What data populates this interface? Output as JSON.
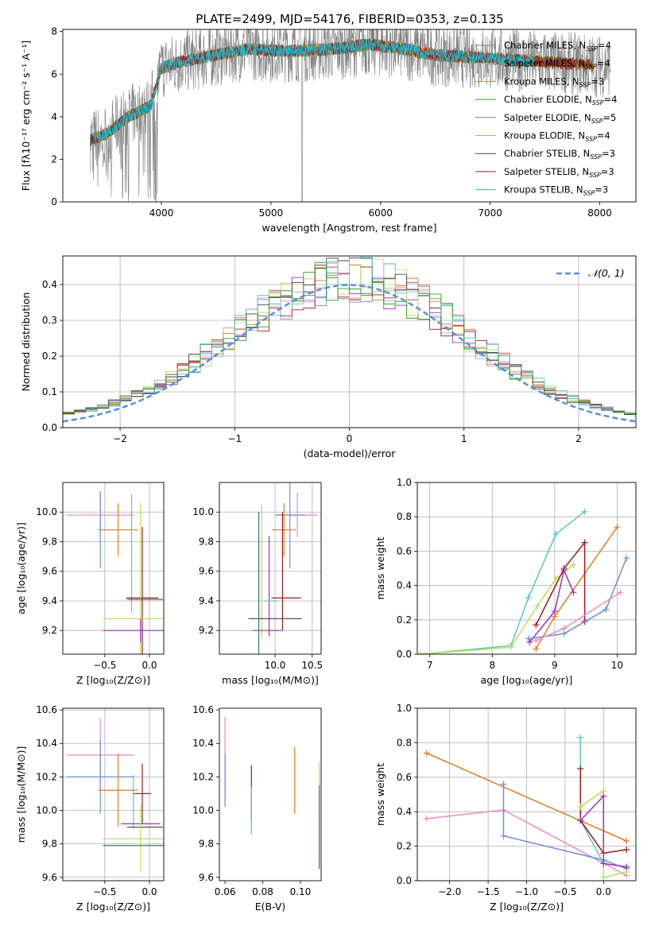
{
  "figure_title": "PLATE=2499, MJD=54176, FIBERID=0353, z=0.135",
  "colors": {
    "chabrier_miles": "#7f7f7f",
    "salpeter_miles": "#ff9896",
    "kroupa_miles": "#ff7f0e",
    "chabrier_elodie": "#2ca02c",
    "salpeter_elodie": "#9467bd",
    "kroupa_elodie": "#bcbd22",
    "chabrier_stelib": "#444444",
    "salpeter_stelib": "#b22222",
    "kroupa_stelib": "#17becf",
    "blue": "#6a8fd8",
    "orange": "#e27a26",
    "pink": "#e98bc4",
    "purple": "#9b35b8",
    "green_light": "#b7e05a",
    "red": "#a11a1a",
    "teal": "#5fc4c4",
    "gauss": "#5b8fd8"
  },
  "chart_data": [
    {
      "id": "spectrum",
      "type": "line",
      "xlabel": "wavelength [Angstrom, rest frame]",
      "ylabel": "Flux [fλ10⁻¹⁷ erg cm⁻² s⁻¹ A⁻¹]",
      "xlim": [
        3100,
        8330
      ],
      "ylim": [
        0,
        8.1
      ],
      "xticks": [
        "4000",
        "5000",
        "6000",
        "7000",
        "8000"
      ],
      "yticks": [
        "0",
        "2",
        "4",
        "6",
        "8"
      ],
      "legend_position": "right",
      "legend": [
        {
          "label": "Chabrier MILES, N",
          "sub": "SSP",
          "suffix": "=4",
          "color": "#7f7f7f"
        },
        {
          "label": "Salpeter MILES, N",
          "sub": "SSP",
          "suffix": "=4",
          "color": "#ff9896"
        },
        {
          "label": "Kroupa MILES, N",
          "sub": "SSP",
          "suffix": "=3",
          "color": "#ff7f0e"
        },
        {
          "label": "Chabrier ELODIE, N",
          "sub": "SSP",
          "suffix": "=4",
          "color": "#2ca02c"
        },
        {
          "label": "Salpeter ELODIE, N",
          "sub": "SSP",
          "suffix": "=5",
          "color": "#9467bd"
        },
        {
          "label": "Kroupa ELODIE, N",
          "sub": "SSP",
          "suffix": "=4",
          "color": "#bcbd22"
        },
        {
          "label": "Chabrier STELIB, N",
          "sub": "SSP",
          "suffix": "=3",
          "color": "#444444"
        },
        {
          "label": "Salpeter STELIB, N",
          "sub": "SSP",
          "suffix": "=3",
          "color": "#b22222"
        },
        {
          "label": "Kroupa STELIB, N",
          "sub": "SSP",
          "suffix": "=3",
          "color": "#17becf"
        }
      ],
      "continuum": {
        "x": [
          3350,
          3500,
          3700,
          3900,
          4000,
          4200,
          4500,
          4800,
          5000,
          5300,
          5600,
          5900,
          6200,
          6500,
          6800,
          7100,
          7400,
          7700,
          8000,
          8100
        ],
        "y": [
          2.9,
          3.2,
          4.0,
          4.5,
          6.3,
          6.6,
          6.9,
          7.2,
          7.1,
          7.1,
          7.2,
          7.4,
          7.2,
          6.9,
          6.8,
          6.7,
          6.6,
          6.5,
          6.4,
          6.4
        ]
      }
    },
    {
      "id": "residuals",
      "type": "histogram",
      "xlabel": "(data-model)/error",
      "ylabel": "Normed distribution",
      "xlim": [
        -2.5,
        2.5
      ],
      "ylim": [
        0,
        0.48
      ],
      "xticks": [
        "−2",
        "−1",
        "0",
        "1",
        "2"
      ],
      "yticks": [
        "0.0",
        "0.1",
        "0.2",
        "0.3",
        "0.4"
      ],
      "grid": true,
      "bins": 50,
      "gauss_label": "𝒩(0, 1)",
      "legend_position": "top-right"
    },
    {
      "id": "age_vs_Z",
      "type": "errorbar",
      "xlabel": "Z [log₁₀(Z/Z⊙)]",
      "ylabel": "age  [log₁₀(age/yr)]",
      "xlim": [
        -0.97,
        0.16
      ],
      "ylim": [
        9.04,
        10.2
      ],
      "xticks": [
        "−0.5",
        "0.0"
      ],
      "yticks": [
        "9.2",
        "9.4",
        "9.6",
        "9.8",
        "10.0"
      ],
      "grid": true,
      "points": [
        {
          "x": -0.55,
          "y": 9.98,
          "xerr": 0.38,
          "yerr": 0.16,
          "color": "#e98bc4"
        },
        {
          "x": -0.55,
          "y": 9.88,
          "xerr": 0.0,
          "yerr": 0.26,
          "color": "#6a8fd8"
        },
        {
          "x": -0.35,
          "y": 9.88,
          "xerr": 0.22,
          "yerr": 0.18,
          "color": "#e27a26"
        },
        {
          "x": -0.2,
          "y": 9.72,
          "xerr": 0.0,
          "yerr": 0.4,
          "color": "#5fc4c4"
        },
        {
          "x": -0.08,
          "y": 9.42,
          "xerr": 0.18,
          "yerr": 0.48,
          "color": "#a11a1a"
        },
        {
          "x": -0.1,
          "y": 9.28,
          "xerr": 0.42,
          "yerr": 0.78,
          "color": "#b7e05a"
        },
        {
          "x": -0.1,
          "y": 9.2,
          "xerr": 0.42,
          "yerr": 0.08,
          "color": "#9b35b8"
        },
        {
          "x": -0.05,
          "y": 9.41,
          "xerr": 0.2,
          "yerr": 0.0,
          "color": "#2e7d6a"
        }
      ]
    },
    {
      "id": "age_vs_mass",
      "type": "errorbar",
      "xlabel": "mass [log₁₀(M/M⊙)]",
      "ylabel": "",
      "xlim": [
        9.25,
        10.62
      ],
      "ylim": [
        9.04,
        10.2
      ],
      "xticks": [
        "10.0",
        "10.5"
      ],
      "yticks": [
        "9.2",
        "9.4",
        "9.6",
        "9.8",
        "10.0"
      ],
      "grid": true,
      "points": [
        {
          "x": 10.3,
          "y": 9.98,
          "xerr": 0.28,
          "yerr": 0.15,
          "color": "#e98bc4"
        },
        {
          "x": 10.2,
          "y": 9.98,
          "xerr": 0.2,
          "yerr": 0.36,
          "color": "#6a8fd8"
        },
        {
          "x": 10.12,
          "y": 9.88,
          "xerr": 0.16,
          "yerr": 0.18,
          "color": "#e27a26"
        },
        {
          "x": 10.15,
          "y": 9.42,
          "xerr": 0.2,
          "yerr": 0.0,
          "color": "#a11a1a"
        },
        {
          "x": 10.1,
          "y": 9.6,
          "xerr": 0.0,
          "yerr": 0.4,
          "color": "#a11a1a"
        },
        {
          "x": 9.82,
          "y": 9.6,
          "xerr": 0.0,
          "yerr": 0.45,
          "color": "#b7e05a"
        },
        {
          "x": 9.92,
          "y": 9.5,
          "xerr": 0.0,
          "yerr": 0.34,
          "color": "#9b35b8"
        },
        {
          "x": 10.0,
          "y": 9.28,
          "xerr": 0.36,
          "yerr": 0.0,
          "color": "#444444"
        },
        {
          "x": 9.9,
          "y": 9.2,
          "xerr": 0.2,
          "yerr": 0.0,
          "color": "#9b35b8"
        },
        {
          "x": 9.95,
          "y": 9.4,
          "xerr": 0.1,
          "yerr": 0.0,
          "color": "#5fc4c4"
        },
        {
          "x": 9.78,
          "y": 9.5,
          "xerr": 0.0,
          "yerr": 0.5,
          "color": "#2e7d6a"
        }
      ]
    },
    {
      "id": "weight_vs_age",
      "type": "line",
      "xlabel": "age  [log₁₀(age/yr)]",
      "ylabel": "mass weight",
      "xlim": [
        6.8,
        10.3
      ],
      "ylim": [
        0,
        1.0
      ],
      "xticks": [
        "7",
        "8",
        "9",
        "10"
      ],
      "yticks": [
        "0.0",
        "0.2",
        "0.4",
        "0.6",
        "0.8",
        "1.0"
      ],
      "grid": true,
      "series": [
        {
          "x": [
            6.85,
            8.3,
            8.58,
            9.02,
            9.48
          ],
          "y": [
            0.0,
            0.05,
            0.33,
            0.7,
            0.83
          ],
          "color": "#5fc4c4"
        },
        {
          "x": [
            6.85,
            8.3,
            8.72,
            9.02,
            9.3
          ],
          "y": [
            0.0,
            0.04,
            0.28,
            0.44,
            0.52
          ],
          "color": "#b7e05a"
        },
        {
          "x": [
            8.7,
            9.0,
            10.0
          ],
          "y": [
            0.03,
            0.22,
            0.74
          ],
          "color": "#e27a26"
        },
        {
          "x": [
            8.7,
            9.15,
            9.48,
            9.48
          ],
          "y": [
            0.17,
            0.5,
            0.65,
            0.19
          ],
          "color": "#a11a1a"
        },
        {
          "x": [
            8.6,
            9.0,
            9.15,
            9.3
          ],
          "y": [
            0.07,
            0.25,
            0.49,
            0.36
          ],
          "color": "#9b35b8"
        },
        {
          "x": [
            8.58,
            9.15,
            9.82,
            10.15
          ],
          "y": [
            0.09,
            0.12,
            0.26,
            0.56
          ],
          "color": "#6a8fd8"
        },
        {
          "x": [
            8.7,
            9.15,
            10.05
          ],
          "y": [
            0.08,
            0.15,
            0.36
          ],
          "color": "#e98bc4"
        }
      ]
    },
    {
      "id": "mass_vs_Z",
      "type": "errorbar",
      "xlabel": "Z [log₁₀(Z/Z⊙)]",
      "ylabel": "mass [log₁₀(M/M⊙)]",
      "xlim": [
        -0.97,
        0.16
      ],
      "ylim": [
        9.58,
        10.61
      ],
      "xticks": [
        "−0.5",
        "0.0"
      ],
      "yticks": [
        "9.6",
        "9.8",
        "10.0",
        "10.2",
        "10.4",
        "10.6"
      ],
      "grid": true,
      "points": [
        {
          "x": -0.55,
          "y": 10.33,
          "xerr": 0.38,
          "yerr": 0.22,
          "color": "#e98bc4"
        },
        {
          "x": -0.55,
          "y": 10.2,
          "xerr": 0.38,
          "yerr": 0.22,
          "color": "#6a8fd8"
        },
        {
          "x": -0.35,
          "y": 10.12,
          "xerr": 0.22,
          "yerr": 0.22,
          "color": "#e27a26"
        },
        {
          "x": -0.08,
          "y": 10.1,
          "xerr": 0.1,
          "yerr": 0.18,
          "color": "#a11a1a"
        },
        {
          "x": -0.18,
          "y": 10.05,
          "xerr": 0.0,
          "yerr": 0.16,
          "color": "#5fc4c4"
        },
        {
          "x": -0.1,
          "y": 9.92,
          "xerr": 0.22,
          "yerr": 0.0,
          "color": "#9b35b8"
        },
        {
          "x": -0.05,
          "y": 9.9,
          "xerr": 0.2,
          "yerr": 0.0,
          "color": "#444444"
        },
        {
          "x": -0.1,
          "y": 9.83,
          "xerr": 0.42,
          "yerr": 0.2,
          "color": "#b7e05a"
        },
        {
          "x": -0.1,
          "y": 9.79,
          "xerr": 0.42,
          "yerr": 0.0,
          "color": "#2e7d6a"
        }
      ]
    },
    {
      "id": "mass_vs_ebv",
      "type": "errorbar",
      "xlabel": "E(B-V)",
      "ylabel": "",
      "xlim": [
        0.057,
        0.111
      ],
      "ylim": [
        9.58,
        10.61
      ],
      "xticks": [
        "0.06",
        "0.08",
        "0.10"
      ],
      "yticks": [
        "9.6",
        "9.8",
        "10.0",
        "10.2",
        "10.4",
        "10.6"
      ],
      "grid": false,
      "points": [
        {
          "x": 0.06,
          "y": 10.33,
          "xerr": 0,
          "yerr": 0.23,
          "color": "#e98bc4"
        },
        {
          "x": 0.06,
          "y": 10.18,
          "xerr": 0,
          "yerr": 0.16,
          "color": "#6a8fd8"
        },
        {
          "x": 0.074,
          "y": 10.1,
          "xerr": 0,
          "yerr": 0.17,
          "color": "#a11a1a"
        },
        {
          "x": 0.074,
          "y": 10.0,
          "xerr": 0,
          "yerr": 0.14,
          "color": "#5fc4c4"
        },
        {
          "x": 0.097,
          "y": 10.18,
          "xerr": 0,
          "yerr": 0.2,
          "color": "#e27a26"
        },
        {
          "x": 0.11,
          "y": 10.0,
          "xerr": 0,
          "yerr": 0.29,
          "color": "#b7e05a"
        },
        {
          "x": 0.11,
          "y": 9.9,
          "xerr": 0,
          "yerr": 0.25,
          "color": "#2e7d6a"
        }
      ]
    },
    {
      "id": "weight_vs_Z",
      "type": "line",
      "xlabel": "Z [log₁₀(Z/Z⊙)]",
      "ylabel": "mass weight",
      "xlim": [
        -2.42,
        0.42
      ],
      "ylim": [
        0,
        1.0
      ],
      "xticks": [
        "−2.0",
        "−1.5",
        "−1.0",
        "−0.5",
        "0.0"
      ],
      "yticks": [
        "0.0",
        "0.2",
        "0.4",
        "0.6",
        "0.8",
        "1.0"
      ],
      "grid": true,
      "series": [
        {
          "x": [
            -2.3,
            0.3
          ],
          "y": [
            0.74,
            0.23
          ],
          "color": "#e27a26"
        },
        {
          "x": [
            -2.3,
            -1.3,
            0.3
          ],
          "y": [
            0.36,
            0.41,
            0.03
          ],
          "color": "#e98bc4"
        },
        {
          "x": [
            -1.3,
            -1.3,
            0.0,
            0.3
          ],
          "y": [
            0.56,
            0.26,
            0.12,
            0.07
          ],
          "color": "#6a8fd8"
        },
        {
          "x": [
            -0.3,
            -0.3,
            0.0,
            0.3
          ],
          "y": [
            0.83,
            0.35,
            0.1,
            0.08
          ],
          "color": "#5fc4c4"
        },
        {
          "x": [
            -0.3,
            -0.3,
            0.0,
            0.3
          ],
          "y": [
            0.65,
            0.35,
            0.16,
            0.18
          ],
          "color": "#a11a1a"
        },
        {
          "x": [
            -0.3,
            0.0,
            0.0,
            0.3
          ],
          "y": [
            0.43,
            0.52,
            0.02,
            0.05
          ],
          "color": "#b7e05a"
        },
        {
          "x": [
            -0.3,
            0.0,
            0.0,
            0.3
          ],
          "y": [
            0.35,
            0.49,
            0.1,
            0.08
          ],
          "color": "#9b35b8"
        }
      ]
    }
  ]
}
